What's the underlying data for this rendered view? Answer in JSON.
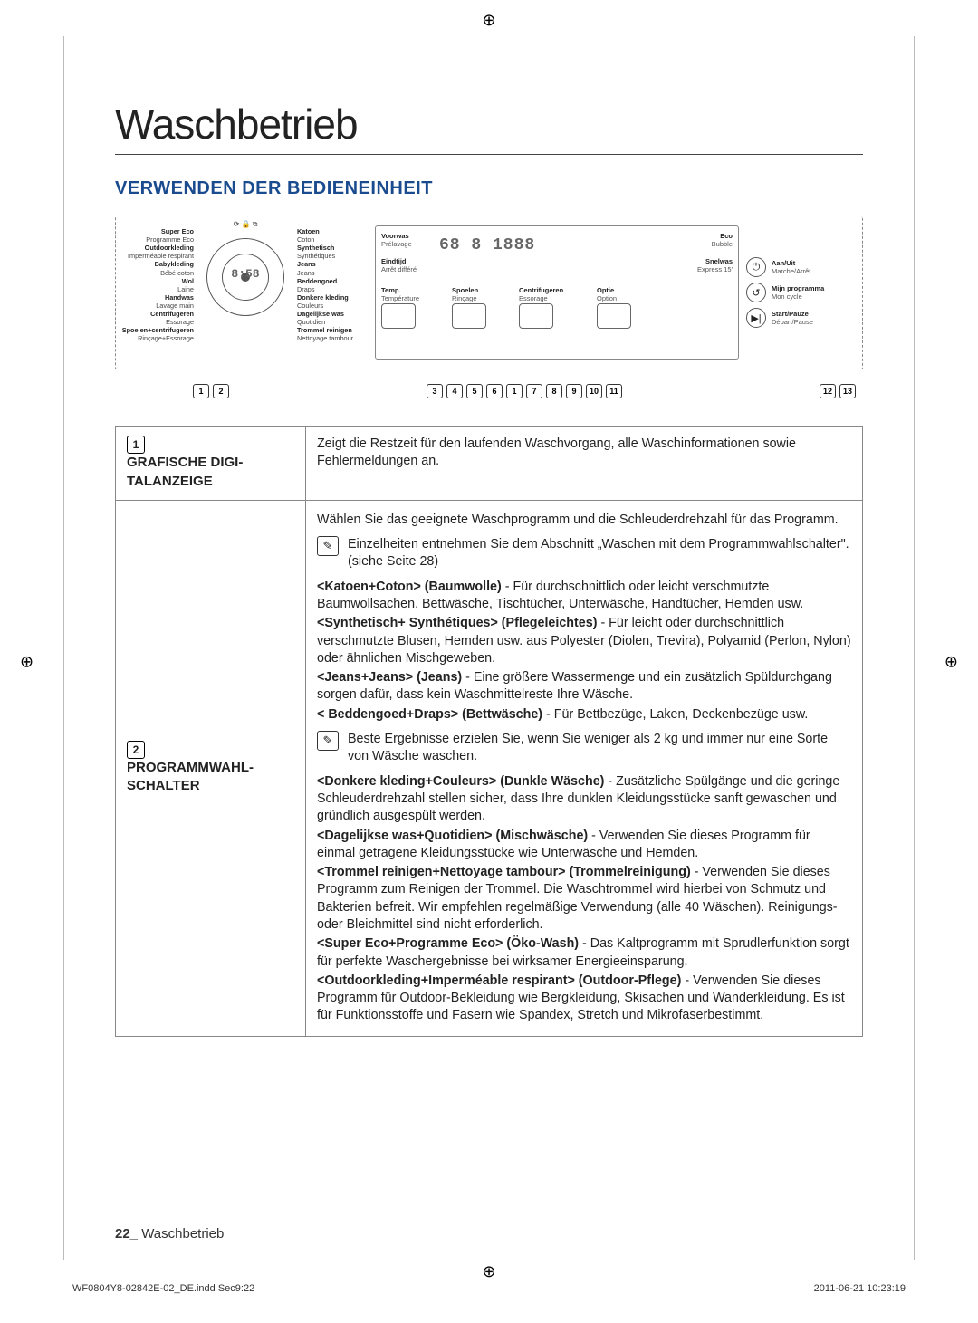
{
  "crop_glyph": "⊕",
  "title": "Waschbetrieb",
  "section_heading": "VERWENDEN DER BEDIENEINHEIT",
  "dial": {
    "eco_bubble": "Eco Bubble",
    "left": [
      {
        "main": "Super Eco",
        "sub": "Programme Eco"
      },
      {
        "main": "Outdoorkleding",
        "sub": "Imperméable respirant"
      },
      {
        "main": "Babykleding",
        "sub": "Bébé coton"
      },
      {
        "main": "Wol",
        "sub": "Laine"
      },
      {
        "main": "Handwas",
        "sub": "Lavage main"
      },
      {
        "main": "Centrifugeren",
        "sub": "Essorage"
      },
      {
        "main": "Spoelen+centrifugeren",
        "sub": "Rinçage+Essorage"
      }
    ],
    "right": [
      {
        "main": "Katoen",
        "sub": "Coton"
      },
      {
        "main": "Synthetisch",
        "sub": "Synthétiques"
      },
      {
        "main": "Jeans",
        "sub": "Jeans"
      },
      {
        "main": "Beddengoed",
        "sub": "Draps"
      },
      {
        "main": "Donkere kleding",
        "sub": "Couleurs"
      },
      {
        "main": "Dagelijkse was",
        "sub": "Quotidien"
      },
      {
        "main": "Trommel reinigen",
        "sub": "Nettoyage tambour"
      }
    ],
    "timer": "8:58"
  },
  "display": {
    "row1": [
      {
        "main": "Voorwas",
        "sub": "Prélavage"
      },
      {
        "seg": "68  8  1888"
      },
      {
        "main": "Eco",
        "sub": "Bubble"
      }
    ],
    "row2": [
      {
        "main": "Eindtijd",
        "sub": "Arrêt différé"
      },
      {
        "main": "Snelwas",
        "sub": "Express 15'"
      }
    ],
    "row3": [
      {
        "main": "Temp.",
        "sub": "Température"
      },
      {
        "main": "Spoelen",
        "sub": "Rinçage"
      },
      {
        "main": "Centrifugeren",
        "sub": "Essorage"
      },
      {
        "main": "Optie",
        "sub": "Option"
      }
    ]
  },
  "side_buttons": [
    {
      "icon": "⏻",
      "main": "Aan/Uit",
      "sub": "Marche/Arrêt"
    },
    {
      "icon": "↺",
      "main": "Mijn programma",
      "sub": "Mon cycle"
    },
    {
      "icon": "▶|",
      "main": "Start/Pauze",
      "sub": "Départ/Pause"
    }
  ],
  "callouts": [
    "1",
    "2",
    "3",
    "4",
    "5",
    "6",
    "1",
    "7",
    "8",
    "9",
    "10",
    "11",
    "12",
    "13"
  ],
  "rows": {
    "r1": {
      "num": "1",
      "label": "GRAFISCHE DIGI­TALANZEIGE",
      "body": "Zeigt die Restzeit für den laufenden Waschvorgang, alle Waschinformationen sowie Fehlermeldungen an."
    },
    "r2": {
      "num": "2",
      "label": "PROGRAMMWAHL­SCHALTER",
      "intro": "Wählen Sie das geeignete Waschprogramm und die Schleuderdrehzahl für das Programm.",
      "note1": "Einzelheiten entnehmen Sie dem Abschnitt „Waschen mit dem Programmwahlschalter\". (siehe Seite 28)",
      "p1_b": "<Katoen+Coton> (Baumwolle)",
      "p1_t": " - Für durchschnittlich oder leicht verschmutzte Baumwollsachen, Bettwäsche, Tischtücher, Unterwäsche, Handtücher, Hemden usw.",
      "p2_b": "<Synthetisch+ Synthétiques> (Pflegeleichtes)",
      "p2_t": " - Für leicht oder durchschnittlich verschmutzte Blusen, Hemden usw. aus Polyester (Diolen, Trevira), Polyamid (Perlon, Nylon) oder ähnlichen Mischgeweben.",
      "p3_b": "<Jeans+Jeans> (Jeans)",
      "p3_t": " - Eine größere Wassermenge und ein zusätzlich Spüldurchgang sorgen dafür, dass kein Waschmittelreste Ihre Wäsche.",
      "p4_b": "< Beddengoed+Draps> (Bettwäsche)",
      "p4_t": " - Für Bettbezüge, Laken, Deckenbezüge usw.",
      "note2": "Beste Ergebnisse erzielen Sie, wenn Sie weniger als 2 kg und immer nur eine Sorte von Wäsche waschen.",
      "p5_b": "<Donkere kleding+Couleurs> (Dunkle Wäsche)",
      "p5_t": " - Zusätzliche Spülgänge und die geringe Schleuderdrehzahl stellen sicher, dass Ihre dunklen Kleidungsstücke sanft gewaschen und gründlich ausgespült werden.",
      "p6_b": "<Dagelijkse was+Quotidien> (Mischwäsche)",
      "p6_t": " - Verwenden Sie dieses Programm für einmal getragene Kleidungsstücke wie Unterwäsche und Hemden.",
      "p7_b": "<Trommel reinigen+Nettoyage tambour> (Trommelreinigung)",
      "p7_t": " - Verwenden Sie dieses Programm zum Reinigen der Trommel. Die Waschtrommel wird hierbei von Schmutz und Bakterien befreit. Wir empfehlen regelmäßige Verwendung (alle 40 Wäschen). Reinigungs- oder Bleichmittel sind nicht erforderlich.",
      "p8_b": "<Super Eco+Programme Eco> (Öko-Wash)",
      "p8_t": " - Das Kaltprogramm mit Sprudlerfunktion sorgt für perfekte Waschergebnisse bei wirksamer Energieeinsparung.",
      "p9_b": "<Outdoorkleding+Imperméable respirant> (Outdoor-Pflege)",
      "p9_t": " - Verwenden Sie dieses Programm für Outdoor-Bekleidung wie Bergkleidung, Skisachen und Wanderkleidung.  Es ist für Funktionsstoffe und Fasern wie Spandex, Stretch und Mikrofaserbestimmt."
    }
  },
  "page_num": "22_",
  "page_label": "Waschbetrieb",
  "print_file": "WF0804Y8-02842E-02_DE.indd   Sec9:22",
  "print_ts": "2011-06-21     10:23:19"
}
